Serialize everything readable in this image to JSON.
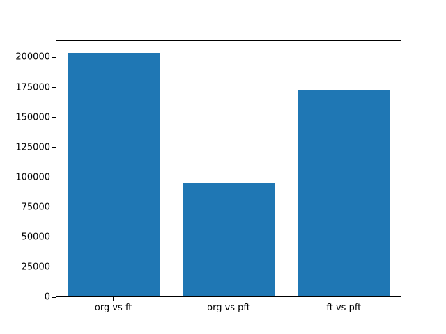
{
  "chart_data": {
    "type": "bar",
    "title": "",
    "xlabel": "",
    "ylabel": "",
    "categories": [
      "org vs ft",
      "org vs pft",
      "ft vs pft"
    ],
    "values": [
      204000,
      95000,
      173000
    ],
    "ylim": [
      0,
      214200
    ],
    "yticks": [
      0,
      25000,
      50000,
      75000,
      100000,
      125000,
      150000,
      175000,
      200000
    ],
    "bar_color": "#1f77b4",
    "axis_color": "#000000",
    "grid": false,
    "legend_position": "none"
  }
}
